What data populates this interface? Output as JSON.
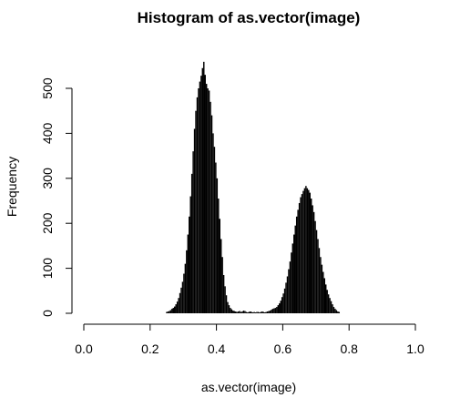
{
  "chart_data": {
    "type": "bar",
    "title": "Histogram of as.vector(image)",
    "xlabel": "as.vector(image)",
    "ylabel": "Frequency",
    "xlim": [
      0,
      1
    ],
    "ylim": [
      0,
      560
    ],
    "x_ticks": [
      0,
      0.2,
      0.4,
      0.6,
      0.8,
      1
    ],
    "x_tick_labels": [
      "0.0",
      "0.2",
      "0.4",
      "0.6",
      "0.8",
      "1.0"
    ],
    "y_ticks": [
      0,
      100,
      200,
      300,
      400,
      500
    ],
    "y_tick_labels": [
      "0",
      "100",
      "200",
      "300",
      "400",
      "500"
    ],
    "bin_width": 0.004,
    "bins_start": [
      0.248,
      0.252,
      0.256,
      0.26,
      0.264,
      0.268,
      0.272,
      0.276,
      0.28,
      0.284,
      0.288,
      0.292,
      0.296,
      0.3,
      0.304,
      0.308,
      0.312,
      0.316,
      0.32,
      0.324,
      0.328,
      0.332,
      0.336,
      0.34,
      0.344,
      0.348,
      0.352,
      0.356,
      0.36,
      0.364,
      0.368,
      0.372,
      0.376,
      0.38,
      0.384,
      0.388,
      0.392,
      0.396,
      0.4,
      0.404,
      0.408,
      0.412,
      0.416,
      0.42,
      0.424,
      0.428,
      0.432,
      0.436,
      0.44,
      0.444,
      0.448,
      0.452,
      0.456,
      0.46,
      0.464,
      0.468,
      0.472,
      0.476,
      0.48,
      0.484,
      0.488,
      0.492,
      0.496,
      0.5,
      0.504,
      0.508,
      0.512,
      0.516,
      0.52,
      0.524,
      0.528,
      0.532,
      0.536,
      0.54,
      0.544,
      0.548,
      0.552,
      0.556,
      0.56,
      0.564,
      0.568,
      0.572,
      0.576,
      0.58,
      0.584,
      0.588,
      0.592,
      0.596,
      0.6,
      0.604,
      0.608,
      0.612,
      0.616,
      0.62,
      0.624,
      0.628,
      0.632,
      0.636,
      0.64,
      0.644,
      0.648,
      0.652,
      0.656,
      0.66,
      0.664,
      0.668,
      0.672,
      0.676,
      0.68,
      0.684,
      0.688,
      0.692,
      0.696,
      0.7,
      0.704,
      0.708,
      0.712,
      0.716,
      0.72,
      0.724,
      0.728,
      0.732,
      0.736,
      0.74,
      0.744,
      0.748,
      0.752,
      0.756,
      0.76,
      0.764,
      0.768
    ],
    "values": [
      3,
      4,
      5,
      7,
      10,
      12,
      15,
      20,
      26,
      34,
      45,
      57,
      70,
      88,
      110,
      140,
      175,
      215,
      260,
      310,
      360,
      410,
      450,
      480,
      500,
      515,
      528,
      545,
      559,
      530,
      510,
      500,
      495,
      470,
      440,
      400,
      370,
      335,
      300,
      255,
      210,
      165,
      125,
      85,
      60,
      40,
      25,
      18,
      12,
      9,
      6,
      5,
      4,
      3,
      4,
      5,
      3,
      4,
      6,
      5,
      3,
      2,
      3,
      4,
      3,
      2,
      3,
      2,
      3,
      3,
      2,
      3,
      4,
      3,
      2,
      3,
      4,
      5,
      6,
      8,
      10,
      11,
      12,
      14,
      18,
      22,
      28,
      36,
      44,
      55,
      68,
      82,
      98,
      115,
      135,
      155,
      175,
      195,
      215,
      230,
      245,
      258,
      265,
      272,
      278,
      283,
      278,
      274,
      268,
      255,
      240,
      225,
      205,
      185,
      165,
      145,
      125,
      108,
      92,
      78,
      64,
      52,
      42,
      34,
      27,
      20,
      14,
      10,
      7,
      4,
      3
    ],
    "colors": {
      "bars": "#000000",
      "background": "#ffffff"
    }
  }
}
